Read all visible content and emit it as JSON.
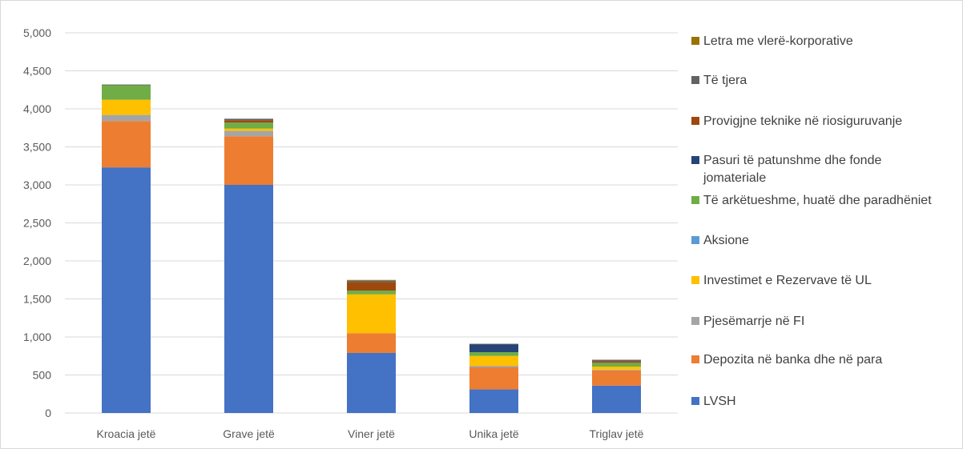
{
  "chart_data": {
    "type": "bar",
    "stacked": true,
    "categories": [
      "Kroacia jetë",
      "Grave jetë",
      "Viner jetë",
      "Unika jetë",
      "Triglav jetë"
    ],
    "ylim": [
      0,
      5000
    ],
    "yticks": [
      "0",
      "500",
      "1,000",
      "1,500",
      "2,000",
      "2,500",
      "3,000",
      "3,500",
      "4,000",
      "4,500",
      "5,000"
    ],
    "ytick_values": [
      0,
      500,
      1000,
      1500,
      2000,
      2500,
      3000,
      3500,
      4000,
      4500,
      5000
    ],
    "grid": true,
    "legend_position": "right",
    "series": [
      {
        "name": "LVSH",
        "color": "#4472c4",
        "values": [
          3230,
          3000,
          790,
          310,
          360
        ]
      },
      {
        "name": "Depozita në banka dhe në para",
        "color": "#ed7d31",
        "values": [
          610,
          640,
          260,
          290,
          200
        ]
      },
      {
        "name": "Pjesëmarrje në FI",
        "color": "#a5a5a5",
        "values": [
          80,
          70,
          0,
          20,
          10
        ]
      },
      {
        "name": "Investimet e Rezervave të UL",
        "color": "#ffc000",
        "values": [
          200,
          30,
          510,
          130,
          40
        ]
      },
      {
        "name": "Aksione",
        "color": "#5b9bd5",
        "values": [
          0,
          0,
          0,
          0,
          0
        ]
      },
      {
        "name": "Të arkëtueshme, huatë dhe paradhëniet",
        "color": "#70ad47",
        "values": [
          190,
          80,
          50,
          50,
          50
        ]
      },
      {
        "name": "Pasuri të patunshme dhe fonde jomateriale",
        "color": "#264478",
        "values": [
          0,
          0,
          0,
          100,
          0
        ]
      },
      {
        "name": "Provigjne teknike në riosiguruvanje",
        "color": "#9e480e",
        "values": [
          0,
          30,
          110,
          0,
          20
        ]
      },
      {
        "name": "Të tjera",
        "color": "#636363",
        "values": [
          10,
          20,
          20,
          10,
          20
        ]
      },
      {
        "name": "Letra me vlerë-korporative",
        "color": "#997300",
        "values": [
          0,
          0,
          10,
          0,
          0
        ]
      }
    ]
  }
}
